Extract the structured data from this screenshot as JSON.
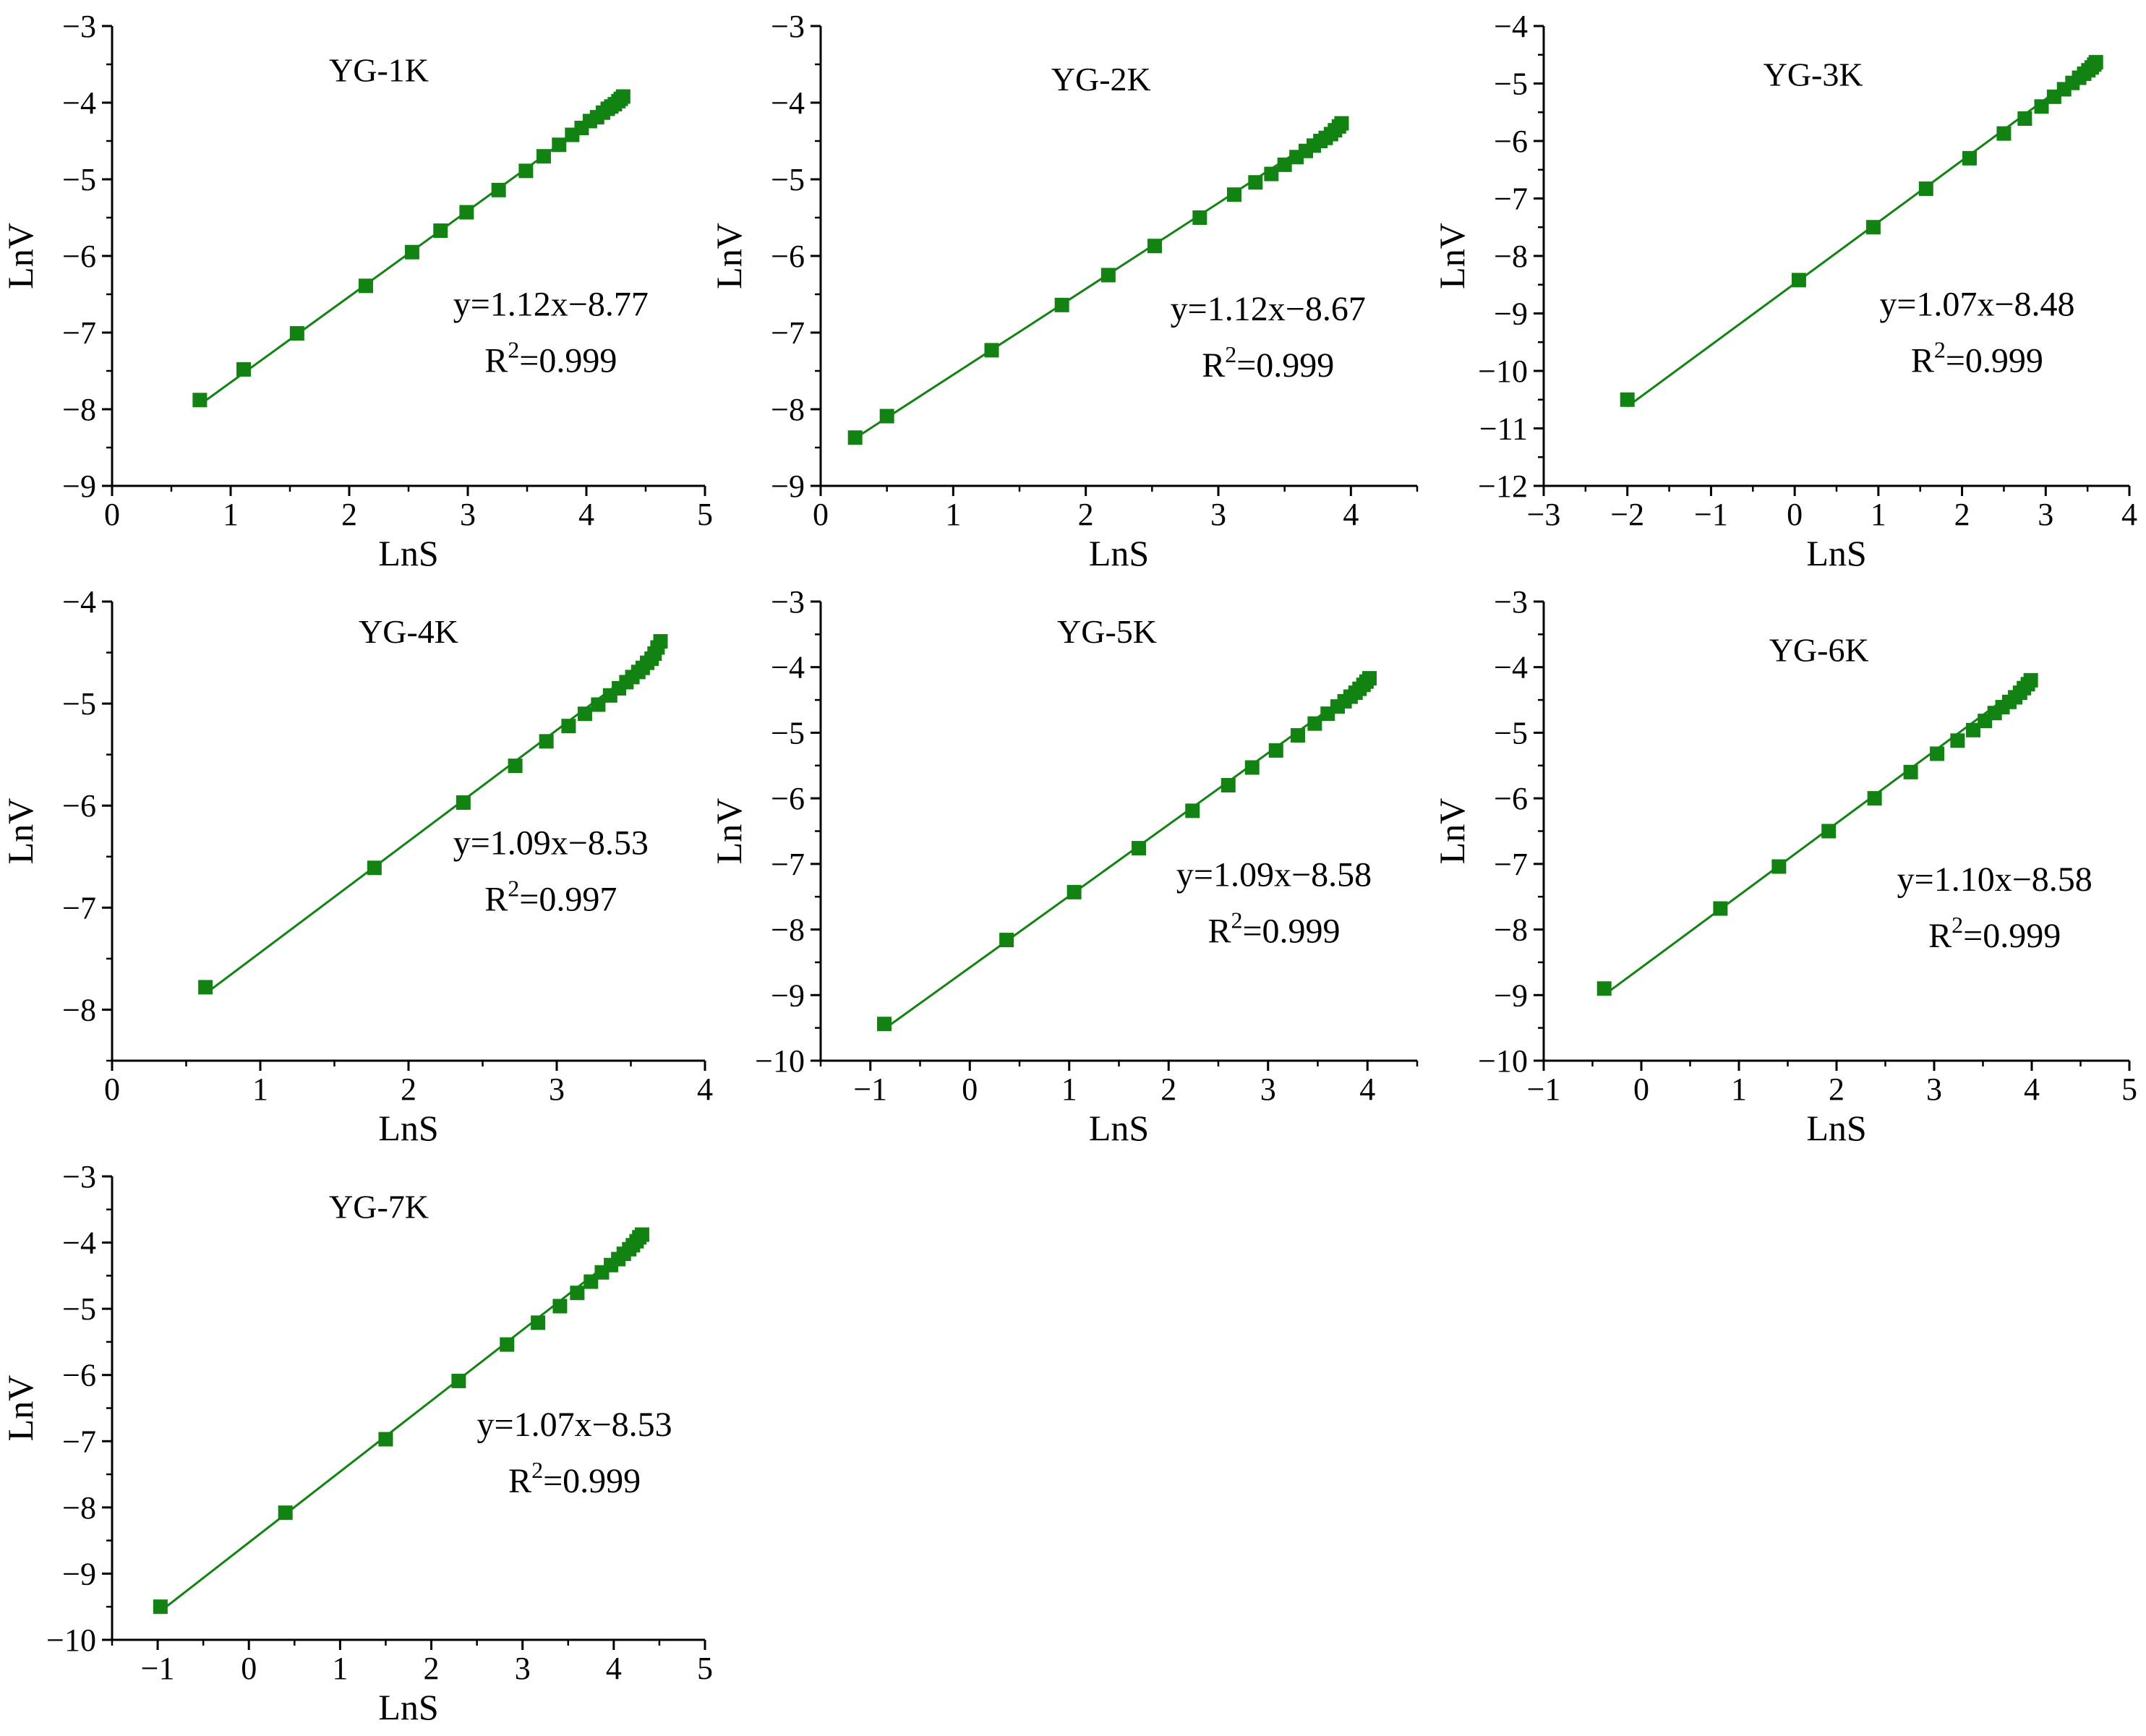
{
  "figure": {
    "series_color": "#128212"
  },
  "chart_data": [
    {
      "type": "scatter",
      "title": "YG-1K",
      "xlabel": "LnS",
      "ylabel": "LnV",
      "xlim": [
        0,
        5
      ],
      "ylim": [
        -9,
        -3
      ],
      "xticks": [
        0,
        1,
        2,
        3,
        4,
        5
      ],
      "yticks": [
        -9,
        -8,
        -7,
        -6,
        -5,
        -4,
        -3
      ],
      "fit": {
        "slope": 1.12,
        "intercept": -8.77,
        "r2": "0.999"
      },
      "equation": "y=1.12x−8.77",
      "r2_label": "R",
      "r2_sup": "2",
      "r2_value": "=0.999",
      "x": [
        0.74,
        1.11,
        1.56,
        2.14,
        2.53,
        2.77,
        2.99,
        3.26,
        3.49,
        3.64,
        3.77,
        3.88,
        3.96,
        4.03,
        4.09,
        4.14,
        4.18,
        4.21,
        4.24,
        4.27,
        4.29,
        4.31
      ],
      "y": [
        -7.88,
        -7.48,
        -7.01,
        -6.39,
        -5.95,
        -5.67,
        -5.43,
        -5.14,
        -4.89,
        -4.7,
        -4.55,
        -4.42,
        -4.33,
        -4.24,
        -4.19,
        -4.13,
        -4.08,
        -4.05,
        -4.02,
        -3.98,
        -3.95,
        -3.92
      ]
    },
    {
      "type": "scatter",
      "title": "YG-2K",
      "xlabel": "LnS",
      "ylabel": "LnV",
      "xlim": [
        0,
        4.5
      ],
      "ylim": [
        -9,
        -3
      ],
      "xticks": [
        0,
        1,
        2,
        3,
        4
      ],
      "yticks": [
        -9,
        -8,
        -7,
        -6,
        -5,
        -4,
        -3
      ],
      "fit": {
        "slope": 1.12,
        "intercept": -8.67,
        "r2": "0.999"
      },
      "equation": "y=1.12x−8.67",
      "r2_label": "R",
      "r2_sup": "2",
      "r2_value": "=0.999",
      "x": [
        0.26,
        0.5,
        1.29,
        1.82,
        2.17,
        2.52,
        2.86,
        3.12,
        3.28,
        3.4,
        3.5,
        3.59,
        3.66,
        3.72,
        3.77,
        3.81,
        3.85,
        3.88,
        3.91,
        3.93
      ],
      "y": [
        -8.37,
        -8.09,
        -7.23,
        -6.64,
        -6.25,
        -5.87,
        -5.5,
        -5.2,
        -5.04,
        -4.93,
        -4.81,
        -4.71,
        -4.63,
        -4.56,
        -4.5,
        -4.46,
        -4.41,
        -4.36,
        -4.31,
        -4.27
      ]
    },
    {
      "type": "scatter",
      "title": "YG-3K",
      "xlabel": "LnS",
      "ylabel": "LnV",
      "xlim": [
        -3,
        4
      ],
      "ylim": [
        -12,
        -4
      ],
      "xticks": [
        -3,
        -2,
        -1,
        0,
        1,
        2,
        3,
        4
      ],
      "yticks": [
        -12,
        -11,
        -10,
        -9,
        -8,
        -7,
        -6,
        -5,
        -4
      ],
      "fit": {
        "slope": 1.07,
        "intercept": -8.48,
        "r2": "0.999"
      },
      "equation": "y=1.07x−8.48",
      "r2_label": "R",
      "r2_sup": "2",
      "r2_value": "=0.999",
      "x": [
        -2.0,
        0.05,
        0.94,
        1.57,
        2.09,
        2.5,
        2.75,
        2.95,
        3.1,
        3.22,
        3.32,
        3.4,
        3.46,
        3.51,
        3.55,
        3.58,
        3.6
      ],
      "y": [
        -10.5,
        -8.42,
        -7.5,
        -6.83,
        -6.3,
        -5.87,
        -5.61,
        -5.4,
        -5.23,
        -5.1,
        -4.99,
        -4.9,
        -4.83,
        -4.77,
        -4.72,
        -4.67,
        -4.63
      ]
    },
    {
      "type": "scatter",
      "title": "YG-4K",
      "xlabel": "LnS",
      "ylabel": "LnV",
      "xlim": [
        0,
        4
      ],
      "ylim": [
        -8.5,
        -4
      ],
      "xticks": [
        0,
        1,
        2,
        3,
        4
      ],
      "yticks": [
        -8,
        -7,
        -6,
        -5,
        -4
      ],
      "fit": {
        "slope": 1.09,
        "intercept": -8.53,
        "r2": "0.997"
      },
      "equation": "y=1.09x−8.53",
      "r2_label": "R",
      "r2_sup": "2",
      "r2_value": "=0.997",
      "x": [
        0.63,
        1.77,
        2.37,
        2.72,
        2.93,
        3.08,
        3.19,
        3.28,
        3.36,
        3.42,
        3.47,
        3.51,
        3.55,
        3.58,
        3.61,
        3.64,
        3.66,
        3.68,
        3.7
      ],
      "y": [
        -7.78,
        -6.61,
        -5.97,
        -5.61,
        -5.37,
        -5.22,
        -5.1,
        -5.01,
        -4.92,
        -4.85,
        -4.79,
        -4.74,
        -4.69,
        -4.65,
        -4.6,
        -4.56,
        -4.51,
        -4.45,
        -4.39
      ]
    },
    {
      "type": "scatter",
      "title": "YG-5K",
      "xlabel": "LnS",
      "ylabel": "LnV",
      "xlim": [
        -1.5,
        4.5
      ],
      "ylim": [
        -10,
        -3
      ],
      "xticks": [
        -1,
        0,
        1,
        2,
        3,
        4
      ],
      "yticks": [
        -10,
        -9,
        -8,
        -7,
        -6,
        -5,
        -4,
        -3
      ],
      "fit": {
        "slope": 1.09,
        "intercept": -8.58,
        "r2": "0.999"
      },
      "equation": "y=1.09x−8.58",
      "r2_label": "R",
      "r2_sup": "2",
      "r2_value": "=0.999",
      "x": [
        -0.86,
        0.37,
        1.05,
        1.7,
        2.24,
        2.6,
        2.84,
        3.08,
        3.3,
        3.47,
        3.6,
        3.7,
        3.77,
        3.83,
        3.88,
        3.92,
        3.96,
        3.99,
        4.02
      ],
      "y": [
        -9.44,
        -8.16,
        -7.43,
        -6.76,
        -6.19,
        -5.8,
        -5.53,
        -5.27,
        -5.04,
        -4.86,
        -4.71,
        -4.6,
        -4.52,
        -4.45,
        -4.39,
        -4.33,
        -4.27,
        -4.22,
        -4.17
      ]
    },
    {
      "type": "scatter",
      "title": "YG-6K",
      "xlabel": "LnS",
      "ylabel": "LnV",
      "xlim": [
        -1,
        5
      ],
      "ylim": [
        -10,
        -3
      ],
      "xticks": [
        -1,
        0,
        1,
        2,
        3,
        4,
        5
      ],
      "yticks": [
        -10,
        -9,
        -8,
        -7,
        -6,
        -5,
        -4,
        -3
      ],
      "fit": {
        "slope": 1.1,
        "intercept": -8.58,
        "r2": "0.999"
      },
      "equation": "y=1.10x−8.58",
      "r2_label": "R",
      "r2_sup": "2",
      "r2_value": "=0.999",
      "x": [
        -0.38,
        0.81,
        1.41,
        1.92,
        2.39,
        2.76,
        3.03,
        3.24,
        3.4,
        3.52,
        3.62,
        3.7,
        3.77,
        3.83,
        3.88,
        3.92,
        3.96,
        3.99
      ],
      "y": [
        -8.9,
        -7.68,
        -7.04,
        -6.5,
        -6.0,
        -5.6,
        -5.32,
        -5.12,
        -4.96,
        -4.82,
        -4.7,
        -4.61,
        -4.53,
        -4.46,
        -4.39,
        -4.32,
        -4.26,
        -4.2
      ]
    },
    {
      "type": "scatter",
      "title": "YG-7K",
      "xlabel": "LnS",
      "ylabel": "LnV",
      "xlim": [
        -1.5,
        5
      ],
      "ylim": [
        -10,
        -3
      ],
      "xticks": [
        -1,
        0,
        1,
        2,
        3,
        4,
        5
      ],
      "yticks": [
        -10,
        -9,
        -8,
        -7,
        -6,
        -5,
        -4,
        -3
      ],
      "fit": {
        "slope": 1.07,
        "intercept": -8.53,
        "r2": "0.999"
      },
      "equation": "y=1.07x−8.53",
      "r2_label": "R",
      "r2_sup": "2",
      "r2_value": "=0.999",
      "x": [
        -0.97,
        0.4,
        1.5,
        2.3,
        2.83,
        3.17,
        3.41,
        3.6,
        3.75,
        3.87,
        3.97,
        4.05,
        4.11,
        4.17,
        4.21,
        4.25,
        4.28,
        4.31
      ],
      "y": [
        -9.5,
        -8.08,
        -6.97,
        -6.09,
        -5.54,
        -5.21,
        -4.96,
        -4.76,
        -4.59,
        -4.45,
        -4.34,
        -4.25,
        -4.17,
        -4.1,
        -4.04,
        -3.98,
        -3.92,
        -3.88
      ]
    }
  ]
}
